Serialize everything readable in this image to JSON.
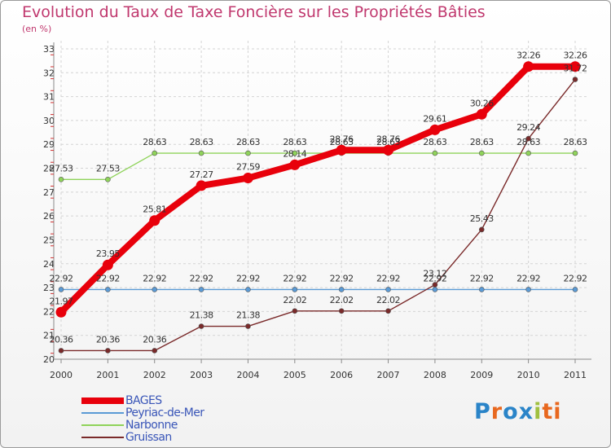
{
  "header": {
    "title": "Evolution du Taux de Taxe Foncière sur les Propriétés Bâties",
    "subtitle": "(en %)"
  },
  "logo": {
    "letters": [
      "P",
      "r",
      "o",
      "x",
      "i",
      "ti"
    ],
    "text": "Proxiti"
  },
  "chart_data": {
    "type": "line",
    "title": "Evolution du Taux de Taxe Foncière sur les Propriétés Bâties",
    "ylabel": "(en %)",
    "xlabel": "",
    "ylim": [
      20,
      33
    ],
    "grid": true,
    "categories": [
      "2000",
      "2001",
      "2002",
      "2003",
      "2004",
      "2005",
      "2006",
      "2007",
      "2008",
      "2009",
      "2010",
      "2011"
    ],
    "yticks": [
      "20",
      "21",
      "22",
      "23",
      "24",
      "25",
      "26",
      "27",
      "28",
      "29",
      "30",
      "31",
      "32",
      "33"
    ],
    "legend_position": "bottom-left",
    "series": [
      {
        "name": "BAGES",
        "color": "#e8000b",
        "style": "thick",
        "values": [
          21.97,
          23.95,
          25.81,
          27.27,
          27.59,
          28.14,
          28.76,
          28.76,
          29.61,
          30.26,
          32.26,
          32.26
        ],
        "labels": [
          "21.97",
          "23.95",
          "25.81",
          "27.27",
          "27.59",
          "28.14",
          "28.76",
          "28.76",
          "29.61",
          "30.26",
          "32.26",
          "32.26"
        ]
      },
      {
        "name": "Peyriac-de-Mer",
        "color": "#5a9ad5",
        "style": "thin",
        "values": [
          22.92,
          22.92,
          22.92,
          22.92,
          22.92,
          22.92,
          22.92,
          22.92,
          22.92,
          22.92,
          22.92,
          22.92
        ],
        "labels": [
          "22.92",
          "22.92",
          "22.92",
          "22.92",
          "22.92",
          "22.92",
          "22.92",
          "22.92",
          "22.92",
          "22.92",
          "22.92",
          "22.92"
        ]
      },
      {
        "name": "Narbonne",
        "color": "#8fd35a",
        "style": "thin",
        "values": [
          27.53,
          27.53,
          28.63,
          28.63,
          28.63,
          28.63,
          28.63,
          28.63,
          28.63,
          28.63,
          28.63,
          28.63
        ],
        "labels": [
          "27.53",
          "27.53",
          "28.63",
          "28.63",
          "28.63",
          "28.63",
          "28.63",
          "28.63",
          "28.63",
          "28.63",
          "28.63",
          "28.63"
        ]
      },
      {
        "name": "Gruissan",
        "color": "#7a2a2a",
        "style": "thin",
        "values": [
          20.36,
          20.36,
          20.36,
          21.38,
          21.38,
          22.02,
          22.02,
          22.02,
          23.12,
          25.43,
          29.24,
          31.72
        ],
        "labels": [
          "20.36",
          "20.36",
          "20.36",
          "21.38",
          "21.38",
          "22.02",
          "22.02",
          "22.02",
          "23.12",
          "25.43",
          "29.24",
          "31.72"
        ]
      }
    ]
  }
}
